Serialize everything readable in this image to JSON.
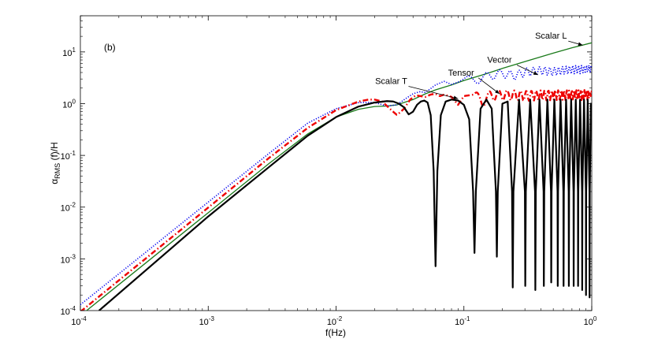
{
  "chart_data": {
    "type": "line",
    "panel_label": "(b)",
    "xlabel": "f(Hz)",
    "ylabel": {
      "main": "α",
      "sub": "RMS",
      "rest": " (f)/H"
    },
    "xscale": "log",
    "yscale": "log",
    "xlim": [
      0.0001,
      1
    ],
    "ylim": [
      0.0001,
      50
    ],
    "x_ticks": [
      {
        "value": 0.0001,
        "base": "10",
        "exp": "-4"
      },
      {
        "value": 0.001,
        "base": "10",
        "exp": "-3"
      },
      {
        "value": 0.01,
        "base": "10",
        "exp": "-2"
      },
      {
        "value": 0.1,
        "base": "10",
        "exp": "-1"
      },
      {
        "value": 1,
        "base": "10",
        "exp": "0"
      }
    ],
    "y_ticks": [
      {
        "value": 0.0001,
        "base": "10",
        "exp": "-4"
      },
      {
        "value": 0.001,
        "base": "10",
        "exp": "-3"
      },
      {
        "value": 0.01,
        "base": "10",
        "exp": "-2"
      },
      {
        "value": 0.1,
        "base": "10",
        "exp": "-1"
      },
      {
        "value": 1,
        "base": "10",
        "exp": "0"
      },
      {
        "value": 10,
        "base": "10",
        "exp": "1"
      }
    ],
    "grid": false,
    "series": [
      {
        "name": "Scalar L",
        "color": "#1a7a1a",
        "dash": "solid",
        "width": 1.3,
        "points": [
          [
            0.0001,
            8e-05
          ],
          [
            0.001,
            0.0078
          ],
          [
            0.003,
            0.07
          ],
          [
            0.006,
            0.26
          ],
          [
            0.01,
            0.55
          ],
          [
            0.015,
            0.78
          ],
          [
            0.02,
            0.88
          ],
          [
            0.025,
            0.9
          ],
          [
            0.03,
            0.95
          ],
          [
            0.04,
            1.2
          ],
          [
            0.05,
            1.55
          ],
          [
            0.06,
            1.85
          ],
          [
            0.08,
            2.3
          ],
          [
            0.1,
            2.8
          ],
          [
            0.15,
            3.8
          ],
          [
            0.2,
            4.8
          ],
          [
            0.3,
            6.5
          ],
          [
            0.5,
            9.5
          ],
          [
            0.7,
            12
          ],
          [
            1,
            15
          ]
        ]
      },
      {
        "name": "Vector",
        "color": "#0000ee",
        "dash": "dotted",
        "width": 1.6,
        "points": [
          [
            0.0001,
            0.00013
          ],
          [
            0.001,
            0.0125
          ],
          [
            0.003,
            0.11
          ],
          [
            0.006,
            0.42
          ],
          [
            0.01,
            0.8
          ],
          [
            0.015,
            1.05
          ],
          [
            0.02,
            1.05
          ],
          [
            0.025,
            0.9
          ],
          [
            0.03,
            0.95
          ],
          [
            0.035,
            1.25
          ],
          [
            0.04,
            1.55
          ],
          [
            0.045,
            1.7
          ],
          [
            0.05,
            1.65
          ],
          [
            0.06,
            2.3
          ],
          [
            0.07,
            2.7
          ],
          [
            0.08,
            2.35
          ],
          [
            0.09,
            2.6
          ],
          [
            0.1,
            3.0
          ],
          [
            0.12,
            2.8
          ],
          [
            0.15,
            3.4
          ],
          [
            0.2,
            3.9
          ],
          [
            0.25,
            3.5
          ],
          [
            0.3,
            4.1
          ],
          [
            0.4,
            4.4
          ],
          [
            0.5,
            4.2
          ],
          [
            0.7,
            4.6
          ],
          [
            1,
            4.7
          ]
        ],
        "oscillation": {
          "start": 0.1,
          "period": 0.04,
          "amplitude": 0.18
        }
      },
      {
        "name": "Tensor",
        "color": "#ee0000",
        "dash": "dashdot",
        "width": 2.4,
        "points": [
          [
            0.0001,
            9.5e-05
          ],
          [
            0.001,
            0.0098
          ],
          [
            0.003,
            0.09
          ],
          [
            0.006,
            0.34
          ],
          [
            0.01,
            0.75
          ],
          [
            0.015,
            1.1
          ],
          [
            0.018,
            1.2
          ],
          [
            0.02,
            1.2
          ],
          [
            0.023,
            1.1
          ],
          [
            0.026,
            0.82
          ],
          [
            0.03,
            0.6
          ],
          [
            0.034,
            0.8
          ],
          [
            0.038,
            1.2
          ],
          [
            0.042,
            1.45
          ],
          [
            0.05,
            1.35
          ],
          [
            0.055,
            1.5
          ],
          [
            0.06,
            1.55
          ],
          [
            0.065,
            1.4
          ],
          [
            0.07,
            1.5
          ],
          [
            0.08,
            1.35
          ],
          [
            0.09,
            0.95
          ],
          [
            0.1,
            1.4
          ],
          [
            0.12,
            1.5
          ],
          [
            0.14,
            1.1
          ],
          [
            0.16,
            1.45
          ],
          [
            0.2,
            1.5
          ],
          [
            0.3,
            1.45
          ],
          [
            0.5,
            1.5
          ],
          [
            1,
            1.5
          ]
        ],
        "oscillation": {
          "start": 0.12,
          "period": 0.03,
          "amplitude": 0.22
        }
      },
      {
        "name": "Scalar T",
        "color": "#000000",
        "dash": "solid",
        "width": 2.2,
        "points": [
          [
            0.00014,
            0.0001
          ],
          [
            0.001,
            0.0066
          ],
          [
            0.003,
            0.06
          ],
          [
            0.006,
            0.24
          ],
          [
            0.01,
            0.55
          ],
          [
            0.015,
            0.88
          ],
          [
            0.02,
            1.05
          ],
          [
            0.025,
            1.12
          ],
          [
            0.028,
            1.1
          ],
          [
            0.031,
            1.0
          ],
          [
            0.034,
            0.85
          ],
          [
            0.037,
            0.62
          ],
          [
            0.04,
            0.7
          ],
          [
            0.043,
            0.95
          ],
          [
            0.046,
            1.1
          ],
          [
            0.049,
            1.15
          ],
          [
            0.052,
            1.05
          ],
          [
            0.055,
            0.6
          ],
          [
            0.058,
            0.05
          ],
          [
            0.06,
            0.00072
          ],
          [
            0.062,
            0.05
          ],
          [
            0.066,
            0.6
          ],
          [
            0.072,
            1.1
          ],
          [
            0.08,
            1.2
          ],
          [
            0.09,
            1.15
          ],
          [
            0.1,
            0.95
          ],
          [
            0.11,
            0.5
          ],
          [
            0.118,
            0.02
          ],
          [
            0.121,
            0.0013
          ],
          [
            0.124,
            0.02
          ],
          [
            0.135,
            0.8
          ],
          [
            0.15,
            1.2
          ],
          [
            0.165,
            0.8
          ],
          [
            0.178,
            0.02
          ],
          [
            0.181,
            0.0011
          ],
          [
            0.184,
            0.02
          ],
          [
            0.2,
            1.0
          ],
          [
            0.22,
            1.1
          ],
          [
            0.238,
            0.02
          ],
          [
            0.241,
            0.00028
          ],
          [
            0.244,
            0.02
          ],
          [
            0.27,
            1.2
          ],
          [
            0.3,
            0.02
          ],
          [
            0.302,
            0.0003
          ],
          [
            0.305,
            0.02
          ],
          [
            0.33,
            1.2
          ],
          [
            0.36,
            0.02
          ],
          [
            0.362,
            0.00025
          ],
          [
            0.365,
            0.02
          ],
          [
            0.39,
            1.2
          ],
          [
            0.42,
            0.02
          ],
          [
            0.422,
            0.0003
          ],
          [
            0.425,
            0.02
          ],
          [
            0.45,
            1.2
          ],
          [
            0.48,
            0.02
          ],
          [
            0.482,
            0.00035
          ],
          [
            0.485,
            0.02
          ],
          [
            0.51,
            1.2
          ],
          [
            0.54,
            0.02
          ],
          [
            0.542,
            0.0003
          ],
          [
            0.545,
            0.02
          ],
          [
            0.57,
            1.2
          ],
          [
            0.6,
            0.02
          ],
          [
            0.602,
            0.0003
          ],
          [
            0.605,
            0.02
          ],
          [
            0.63,
            1.2
          ],
          [
            0.66,
            0.02
          ],
          [
            0.662,
            0.0003
          ],
          [
            0.665,
            0.02
          ],
          [
            0.69,
            1.2
          ],
          [
            0.72,
            0.02
          ],
          [
            0.722,
            0.0003
          ],
          [
            0.725,
            0.02
          ],
          [
            0.75,
            1.2
          ],
          [
            0.78,
            0.02
          ],
          [
            0.782,
            0.0003
          ],
          [
            0.785,
            0.02
          ],
          [
            0.81,
            1.2
          ],
          [
            0.84,
            0.02
          ],
          [
            0.842,
            0.00025
          ],
          [
            0.845,
            0.02
          ],
          [
            0.87,
            1.2
          ],
          [
            0.9,
            0.02
          ],
          [
            0.902,
            0.0002
          ],
          [
            0.905,
            0.02
          ],
          [
            0.93,
            1.2
          ],
          [
            0.96,
            0.02
          ],
          [
            0.962,
            0.00018
          ],
          [
            0.965,
            0.02
          ],
          [
            0.985,
            1.0
          ],
          [
            1,
            0.95
          ]
        ]
      }
    ],
    "annotations": [
      {
        "text": "Scalar L",
        "text_at": [
          0.48,
          18
        ],
        "arrow_to": [
          0.85,
          13.5
        ]
      },
      {
        "text": "Vector",
        "text_at": [
          0.19,
          6.2
        ],
        "arrow_to": [
          0.38,
          3.6
        ]
      },
      {
        "text": "Tensor",
        "text_at": [
          0.095,
          3.5
        ],
        "arrow_to": [
          0.19,
          1.55
        ]
      },
      {
        "text": "Scalar T",
        "text_at": [
          0.027,
          2.4
        ],
        "arrow_to": [
          0.09,
          1.25
        ]
      }
    ]
  }
}
